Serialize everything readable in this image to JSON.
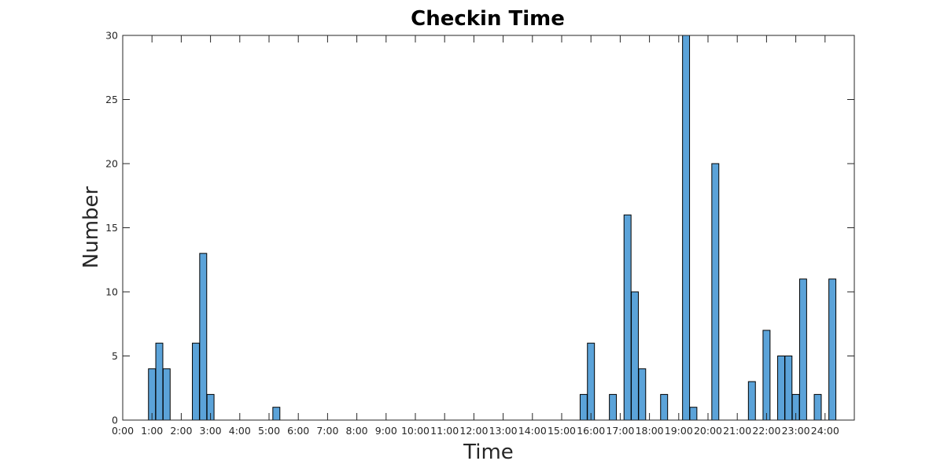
{
  "chart_data": {
    "type": "bar",
    "title": "Checkin Time",
    "xlabel": "Time",
    "ylabel": "Number",
    "xlim": [
      0,
      25
    ],
    "ylim": [
      0,
      30
    ],
    "xticks": [
      0,
      1,
      2,
      3,
      4,
      5,
      6,
      7,
      8,
      9,
      10,
      11,
      12,
      13,
      14,
      15,
      16,
      17,
      18,
      19,
      20,
      21,
      22,
      23,
      24
    ],
    "xtick_labels": [
      "0:00",
      "1:00",
      "2:00",
      "3:00",
      "4:00",
      "5:00",
      "6:00",
      "7:00",
      "8:00",
      "9:00",
      "10:00",
      "11:00",
      "12:00",
      "13:00",
      "14:00",
      "15:00",
      "16:00",
      "17:00",
      "18:00",
      "19:00",
      "20:00",
      "21:00",
      "22:00",
      "23:00",
      "24:00"
    ],
    "yticks": [
      0,
      5,
      10,
      15,
      20,
      25,
      30
    ],
    "ytick_labels": [
      "0",
      "5",
      "10",
      "15",
      "20",
      "25",
      "30"
    ],
    "bar_width": 0.24,
    "grid": false,
    "bar_color": "#5BA3D9",
    "bars": [
      {
        "x": 1.0,
        "value": 4
      },
      {
        "x": 1.25,
        "value": 6
      },
      {
        "x": 1.5,
        "value": 4
      },
      {
        "x": 2.5,
        "value": 6
      },
      {
        "x": 2.75,
        "value": 13
      },
      {
        "x": 3.0,
        "value": 2
      },
      {
        "x": 5.25,
        "value": 1
      },
      {
        "x": 15.75,
        "value": 2
      },
      {
        "x": 16.0,
        "value": 6
      },
      {
        "x": 16.75,
        "value": 2
      },
      {
        "x": 17.25,
        "value": 16
      },
      {
        "x": 17.5,
        "value": 10
      },
      {
        "x": 17.75,
        "value": 4
      },
      {
        "x": 18.5,
        "value": 2
      },
      {
        "x": 19.25,
        "value": 30
      },
      {
        "x": 19.5,
        "value": 1
      },
      {
        "x": 20.25,
        "value": 20
      },
      {
        "x": 21.5,
        "value": 3
      },
      {
        "x": 22.0,
        "value": 7
      },
      {
        "x": 22.5,
        "value": 5
      },
      {
        "x": 22.75,
        "value": 5
      },
      {
        "x": 23.0,
        "value": 2
      },
      {
        "x": 23.25,
        "value": 11
      },
      {
        "x": 23.75,
        "value": 2
      },
      {
        "x": 24.25,
        "value": 11
      }
    ]
  }
}
